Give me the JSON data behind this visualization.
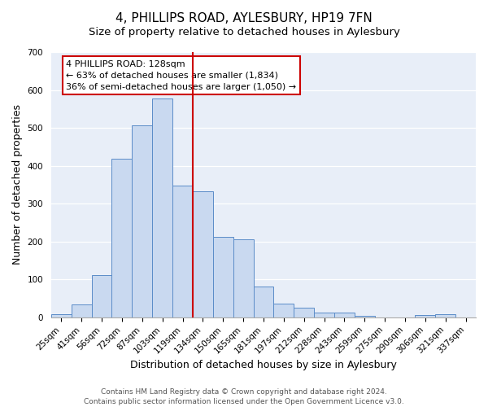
{
  "title": "4, PHILLIPS ROAD, AYLESBURY, HP19 7FN",
  "subtitle": "Size of property relative to detached houses in Aylesbury",
  "xlabel": "Distribution of detached houses by size in Aylesbury",
  "ylabel": "Number of detached properties",
  "bar_color": "#c9d9f0",
  "bar_edge_color": "#5b8cc8",
  "background_color": "#e8eef8",
  "categories": [
    "25sqm",
    "41sqm",
    "56sqm",
    "72sqm",
    "87sqm",
    "103sqm",
    "119sqm",
    "134sqm",
    "150sqm",
    "165sqm",
    "181sqm",
    "197sqm",
    "212sqm",
    "228sqm",
    "243sqm",
    "259sqm",
    "275sqm",
    "290sqm",
    "306sqm",
    "321sqm",
    "337sqm"
  ],
  "values": [
    8,
    35,
    112,
    418,
    507,
    577,
    347,
    332,
    212,
    206,
    82,
    36,
    25,
    12,
    12,
    5,
    0,
    0,
    6,
    8,
    0
  ],
  "vline_x": 6.5,
  "vline_color": "#cc0000",
  "ylim": [
    0,
    700
  ],
  "yticks": [
    0,
    100,
    200,
    300,
    400,
    500,
    600,
    700
  ],
  "annotation_line1": "4 PHILLIPS ROAD: 128sqm",
  "annotation_line2": "← 63% of detached houses are smaller (1,834)",
  "annotation_line3": "36% of semi-detached houses are larger (1,050) →",
  "footer_line1": "Contains HM Land Registry data © Crown copyright and database right 2024.",
  "footer_line2": "Contains public sector information licensed under the Open Government Licence v3.0.",
  "title_fontsize": 11,
  "subtitle_fontsize": 9.5,
  "xlabel_fontsize": 9,
  "ylabel_fontsize": 9,
  "tick_fontsize": 7.5,
  "annotation_fontsize": 8,
  "footer_fontsize": 6.5
}
